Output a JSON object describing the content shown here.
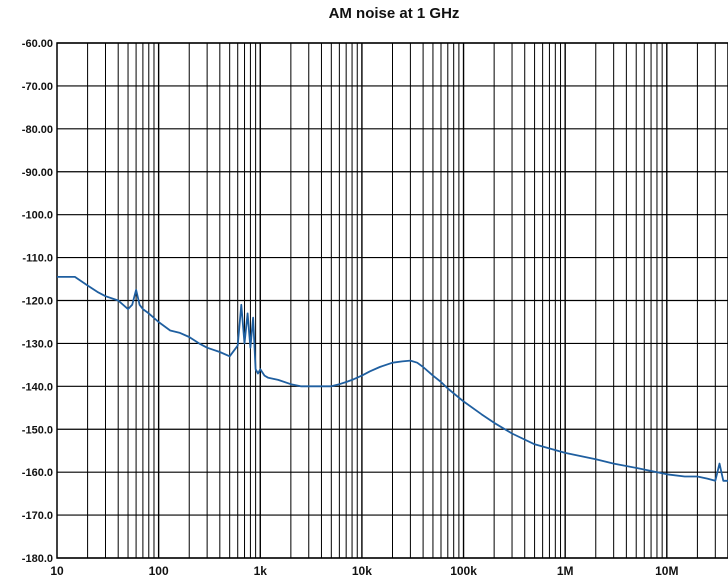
{
  "chart_data": {
    "type": "line",
    "title": "AM noise at 1 GHz",
    "xlabel": "",
    "ylabel": "",
    "x_scale": "log",
    "xlim": [
      10,
      40000000
    ],
    "ylim": [
      -180,
      -60
    ],
    "grid": true,
    "legend": "none",
    "line_color": "#1f5fa0",
    "y_ticks": [
      "-60.00",
      "-70.00",
      "-80.00",
      "-90.00",
      "-100.0",
      "-110.0",
      "-120.0",
      "-130.0",
      "-140.0",
      "-150.0",
      "-160.0",
      "-170.0",
      "-180.0"
    ],
    "x_ticks": [
      "10",
      "100",
      "1k",
      "10k",
      "100k",
      "1M",
      "10M"
    ],
    "series": [
      {
        "x": [
          10,
          15,
          20,
          25,
          30,
          40,
          50,
          55,
          60,
          65,
          70,
          80,
          100,
          130,
          160,
          200,
          250,
          300,
          400,
          500,
          600,
          650,
          700,
          750,
          800,
          850,
          900,
          950,
          1000,
          1100,
          1200,
          1500,
          2000,
          2500,
          3000,
          4000,
          5000,
          6000,
          7000,
          8000,
          10000,
          12000,
          15000,
          20000,
          25000,
          30000,
          35000,
          40000,
          50000,
          60000,
          70000,
          100000,
          150000,
          200000,
          300000,
          500000,
          1000000,
          2000000,
          3000000,
          5000000,
          10000000,
          15000000,
          20000000,
          25000000,
          30000000,
          33000000,
          36000000,
          40000000
        ],
        "y": [
          -114.5,
          -114.5,
          -116.5,
          -118,
          -119,
          -120,
          -122,
          -121,
          -117.5,
          -121,
          -122,
          -123,
          -125,
          -127,
          -127.5,
          -128.5,
          -130,
          -131,
          -132,
          -133,
          -130.5,
          -121,
          -130,
          -123,
          -131,
          -124,
          -136,
          -137,
          -136,
          -137.5,
          -138,
          -138.5,
          -139.5,
          -140,
          -140,
          -140,
          -140,
          -139.5,
          -139,
          -138.5,
          -137.5,
          -136.5,
          -135.5,
          -134.5,
          -134.2,
          -134,
          -134.5,
          -135.5,
          -137.5,
          -139,
          -140.5,
          -143.5,
          -146.5,
          -148.5,
          -151,
          -153.5,
          -155.5,
          -157,
          -158,
          -159,
          -160.5,
          -161,
          -161,
          -161.5,
          -162,
          -158,
          -162,
          -162
        ]
      }
    ]
  }
}
